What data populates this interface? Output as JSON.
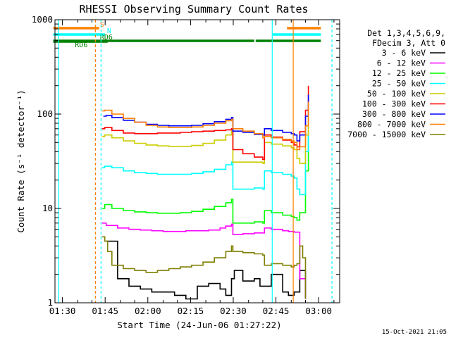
{
  "chart_data": {
    "type": "line",
    "title": "RHESSI Observing Summary Count Rates",
    "xlabel": "Start Time (24-Jun-06 01:27:22)",
    "ylabel": "Count Rate (s⁻¹ detector⁻¹)",
    "yscale": "log",
    "ylim": [
      1,
      1000
    ],
    "xlim_minutes": [
      0,
      100
    ],
    "x_ticks": [
      {
        "m": 2.63,
        "label": "01:30"
      },
      {
        "m": 17.63,
        "label": "01:45"
      },
      {
        "m": 32.63,
        "label": "02:00"
      },
      {
        "m": 47.63,
        "label": "02:15"
      },
      {
        "m": 62.63,
        "label": "02:30"
      },
      {
        "m": 77.63,
        "label": "02:45"
      },
      {
        "m": 92.63,
        "label": "03:00"
      }
    ],
    "y_ticks": [
      {
        "v": 1,
        "label": "1"
      },
      {
        "v": 10,
        "label": "10"
      },
      {
        "v": 100,
        "label": "100"
      },
      {
        "v": 1000,
        "label": "1000"
      }
    ],
    "legend_header": [
      "Det 1,3,4,5,6,9,",
      "FDecim 3, Att 0"
    ],
    "series": [
      {
        "name": "3 - 6 keV",
        "color": "#000000",
        "x": [
          18.0,
          22.0,
          26.0,
          30.0,
          34.0,
          38.0,
          42.0,
          46.0,
          50.0,
          54.0,
          58.0,
          60.0,
          62.0,
          63.0,
          66.0,
          70.0,
          72.0,
          73.6,
          76.0,
          80.0,
          82.0,
          84.0,
          86.0,
          88.0
        ],
        "values": [
          4.5,
          1.8,
          1.5,
          1.4,
          1.3,
          1.3,
          1.2,
          1.1,
          1.5,
          1.6,
          1.4,
          1.2,
          1.8,
          2.2,
          1.7,
          1.8,
          1.5,
          1.5,
          2.0,
          1.3,
          1.2,
          1.3,
          2.2,
          1.1
        ]
      },
      {
        "name": "6 - 12 keV",
        "color": "#ff00ff",
        "x": [
          16.5,
          18.0,
          22.0,
          26.0,
          30.0,
          34.0,
          38.0,
          42.0,
          46.0,
          50.0,
          54.0,
          58.0,
          60.0,
          62.0,
          62.5,
          66.0,
          70.0,
          73.0,
          73.6,
          76.0,
          80.0,
          82.0,
          84.0,
          86.0,
          88.0
        ],
        "values": [
          7.0,
          6.6,
          6.2,
          6.0,
          5.9,
          5.8,
          5.7,
          5.7,
          5.8,
          5.8,
          5.9,
          6.2,
          6.5,
          6.8,
          5.3,
          5.4,
          5.5,
          5.5,
          6.2,
          6.0,
          5.8,
          5.7,
          5.6,
          1.8,
          1.1
        ]
      },
      {
        "name": "12 - 25 keV",
        "color": "#00ff00",
        "x": [
          16.5,
          17.5,
          20.0,
          24.0,
          28.0,
          32.0,
          36.0,
          40.0,
          44.0,
          48.0,
          52.0,
          56.0,
          60.0,
          62.0,
          62.5,
          66.0,
          70.0,
          73.0,
          73.6,
          76.0,
          80.0,
          83.0,
          84.0,
          85.0,
          86.0,
          88.0,
          89.0
        ],
        "values": [
          10,
          11,
          10,
          9.5,
          9.2,
          9.0,
          8.9,
          8.9,
          9.0,
          9.3,
          9.8,
          10.5,
          11.5,
          12.5,
          7.0,
          7.0,
          7.2,
          7.0,
          9.5,
          9.0,
          8.5,
          8.2,
          8.0,
          7.5,
          9.0,
          25,
          60
        ]
      },
      {
        "name": "25 - 50 keV",
        "color": "#00ffff",
        "x": [
          16.5,
          17.5,
          20.0,
          24.0,
          28.0,
          32.0,
          36.0,
          40.0,
          44.0,
          48.0,
          52.0,
          56.0,
          60.0,
          62.0,
          62.5,
          66.0,
          70.0,
          73.0,
          73.6,
          76.0,
          80.0,
          83.0,
          84.0,
          85.0,
          86.0,
          88.0,
          89.0
        ],
        "values": [
          27,
          28,
          27,
          25,
          24,
          23.5,
          23,
          23,
          23,
          23.5,
          24.5,
          26,
          29,
          31,
          16,
          16,
          16.5,
          16,
          25,
          24,
          23,
          22,
          21,
          16,
          14,
          40,
          100
        ]
      },
      {
        "name": "50 - 100 keV",
        "color": "#cccc00",
        "x": [
          16.5,
          17.5,
          20.0,
          24.0,
          28.0,
          32.0,
          36.0,
          40.0,
          44.0,
          48.0,
          52.0,
          56.0,
          60.0,
          62.0,
          62.5,
          66.0,
          70.0,
          73.0,
          73.6,
          76.0,
          80.0,
          83.0,
          84.0,
          85.0,
          86.0,
          88.0,
          89.0
        ],
        "values": [
          58,
          60,
          56,
          52,
          49,
          47,
          46,
          45.5,
          45.5,
          46.5,
          49,
          53,
          60,
          66,
          31,
          31,
          31,
          30,
          50,
          48,
          46,
          44,
          42,
          34,
          30,
          60,
          130
        ]
      },
      {
        "name": "100 - 300 keV",
        "color": "#ff0000",
        "x": [
          16.5,
          17.5,
          20.0,
          24.0,
          28.0,
          32.0,
          36.0,
          40.0,
          44.0,
          48.0,
          52.0,
          56.0,
          60.0,
          62.0,
          62.5,
          66.0,
          70.0,
          73.0,
          73.6,
          76.0,
          80.0,
          83.0,
          84.0,
          85.0,
          86.0,
          88.0,
          89.0
        ],
        "values": [
          70,
          72,
          67,
          63,
          62,
          62,
          63,
          63,
          64,
          65,
          66,
          67,
          68,
          70,
          42,
          38,
          35,
          33,
          60,
          57,
          53,
          50,
          47,
          45,
          65,
          110,
          200
        ]
      },
      {
        "name": "300 - 800 keV",
        "color": "#0000ff",
        "x": [
          17.0,
          18.0,
          20.0,
          24.0,
          28.0,
          32.0,
          36.0,
          40.0,
          44.0,
          48.0,
          52.0,
          56.0,
          60.0,
          62.0,
          62.5,
          66.0,
          70.0,
          73.0,
          73.6,
          76.0,
          80.0,
          83.0,
          84.0,
          85.0,
          86.0,
          88.0,
          89.0
        ],
        "values": [
          95,
          97,
          92,
          86,
          82,
          78,
          76,
          75,
          75,
          76,
          79,
          83,
          88,
          92,
          66,
          64,
          61,
          60,
          70,
          67,
          64,
          62,
          60,
          52,
          60,
          95,
          160
        ]
      },
      {
        "name": "800 - 7000 keV",
        "color": "#ff7f00",
        "x": [
          16.5,
          17.5,
          20.0,
          24.0,
          28.0,
          32.0,
          36.0,
          40.0,
          44.0,
          48.0,
          52.0,
          56.0,
          60.0,
          62.0,
          62.5,
          66.0,
          70.0,
          73.0,
          73.6,
          76.0,
          80.0,
          83.0,
          84.0,
          85.0,
          86.0,
          88.0,
          89.0
        ],
        "values": [
          108,
          110,
          100,
          90,
          82,
          76,
          73,
          72,
          72,
          73,
          76,
          80,
          85,
          88,
          70,
          66,
          62,
          56,
          58,
          56,
          54,
          52,
          50,
          42,
          45,
          75,
          135
        ]
      },
      {
        "name": "7000 - 15000 keV",
        "color": "#7f7f00",
        "x": [
          16.5,
          17.5,
          18.5,
          20.0,
          24.0,
          28.0,
          32.0,
          36.0,
          40.0,
          44.0,
          48.0,
          52.0,
          56.0,
          60.0,
          62.0,
          62.5,
          66.0,
          70.0,
          73.0,
          73.6,
          76.0,
          80.0,
          83.0,
          84.0,
          85.0,
          86.0,
          87.0,
          88.0
        ],
        "values": [
          5.0,
          4.5,
          3.5,
          2.5,
          2.3,
          2.2,
          2.1,
          2.2,
          2.3,
          2.4,
          2.5,
          2.7,
          3.0,
          3.5,
          4.0,
          3.5,
          3.4,
          3.3,
          3.2,
          2.5,
          2.6,
          2.5,
          2.4,
          2.5,
          2.6,
          4.0,
          3.0,
          1.1
        ]
      }
    ],
    "markers": [
      {
        "label": "S",
        "color": "#ff8000",
        "segments": [
          [
            -0.6,
            15.5
          ],
          [
            81.5,
            93.4
          ]
        ],
        "label_m": 15.8
      },
      {
        "label": "N",
        "color": "#00ffff",
        "segments": [
          [
            -0.6,
            17.6
          ],
          [
            76.5,
            93.4
          ]
        ],
        "label_m": 18.3
      },
      {
        "label": "RD6",
        "color": "#008000",
        "segments": [
          [
            -0.6,
            21.5
          ],
          [
            21.5,
            62.0
          ],
          [
            62.0,
            70.0
          ],
          [
            70.5,
            93.4
          ]
        ],
        "label_m": 15.8
      },
      {
        "label": "RD6",
        "color": "#008000",
        "segments": [
          [
            -0.6,
            18.5
          ]
        ],
        "label_m": 7.0
      }
    ],
    "vertical_lines": [
      {
        "m": 1.3,
        "color": "#00ffff",
        "style": "solid"
      },
      {
        "m": 14.2,
        "color": "#ff8000",
        "style": "dashed"
      },
      {
        "m": 16.2,
        "color": "#00ffff",
        "style": "dashed"
      },
      {
        "m": 76.3,
        "color": "#00ffff",
        "style": "solid"
      },
      {
        "m": 83.7,
        "color": "#ff8000",
        "style": "solid"
      },
      {
        "m": 97.3,
        "color": "#00ffff",
        "style": "dashed"
      }
    ],
    "timestamp": "15-Oct-2021 21:05"
  }
}
